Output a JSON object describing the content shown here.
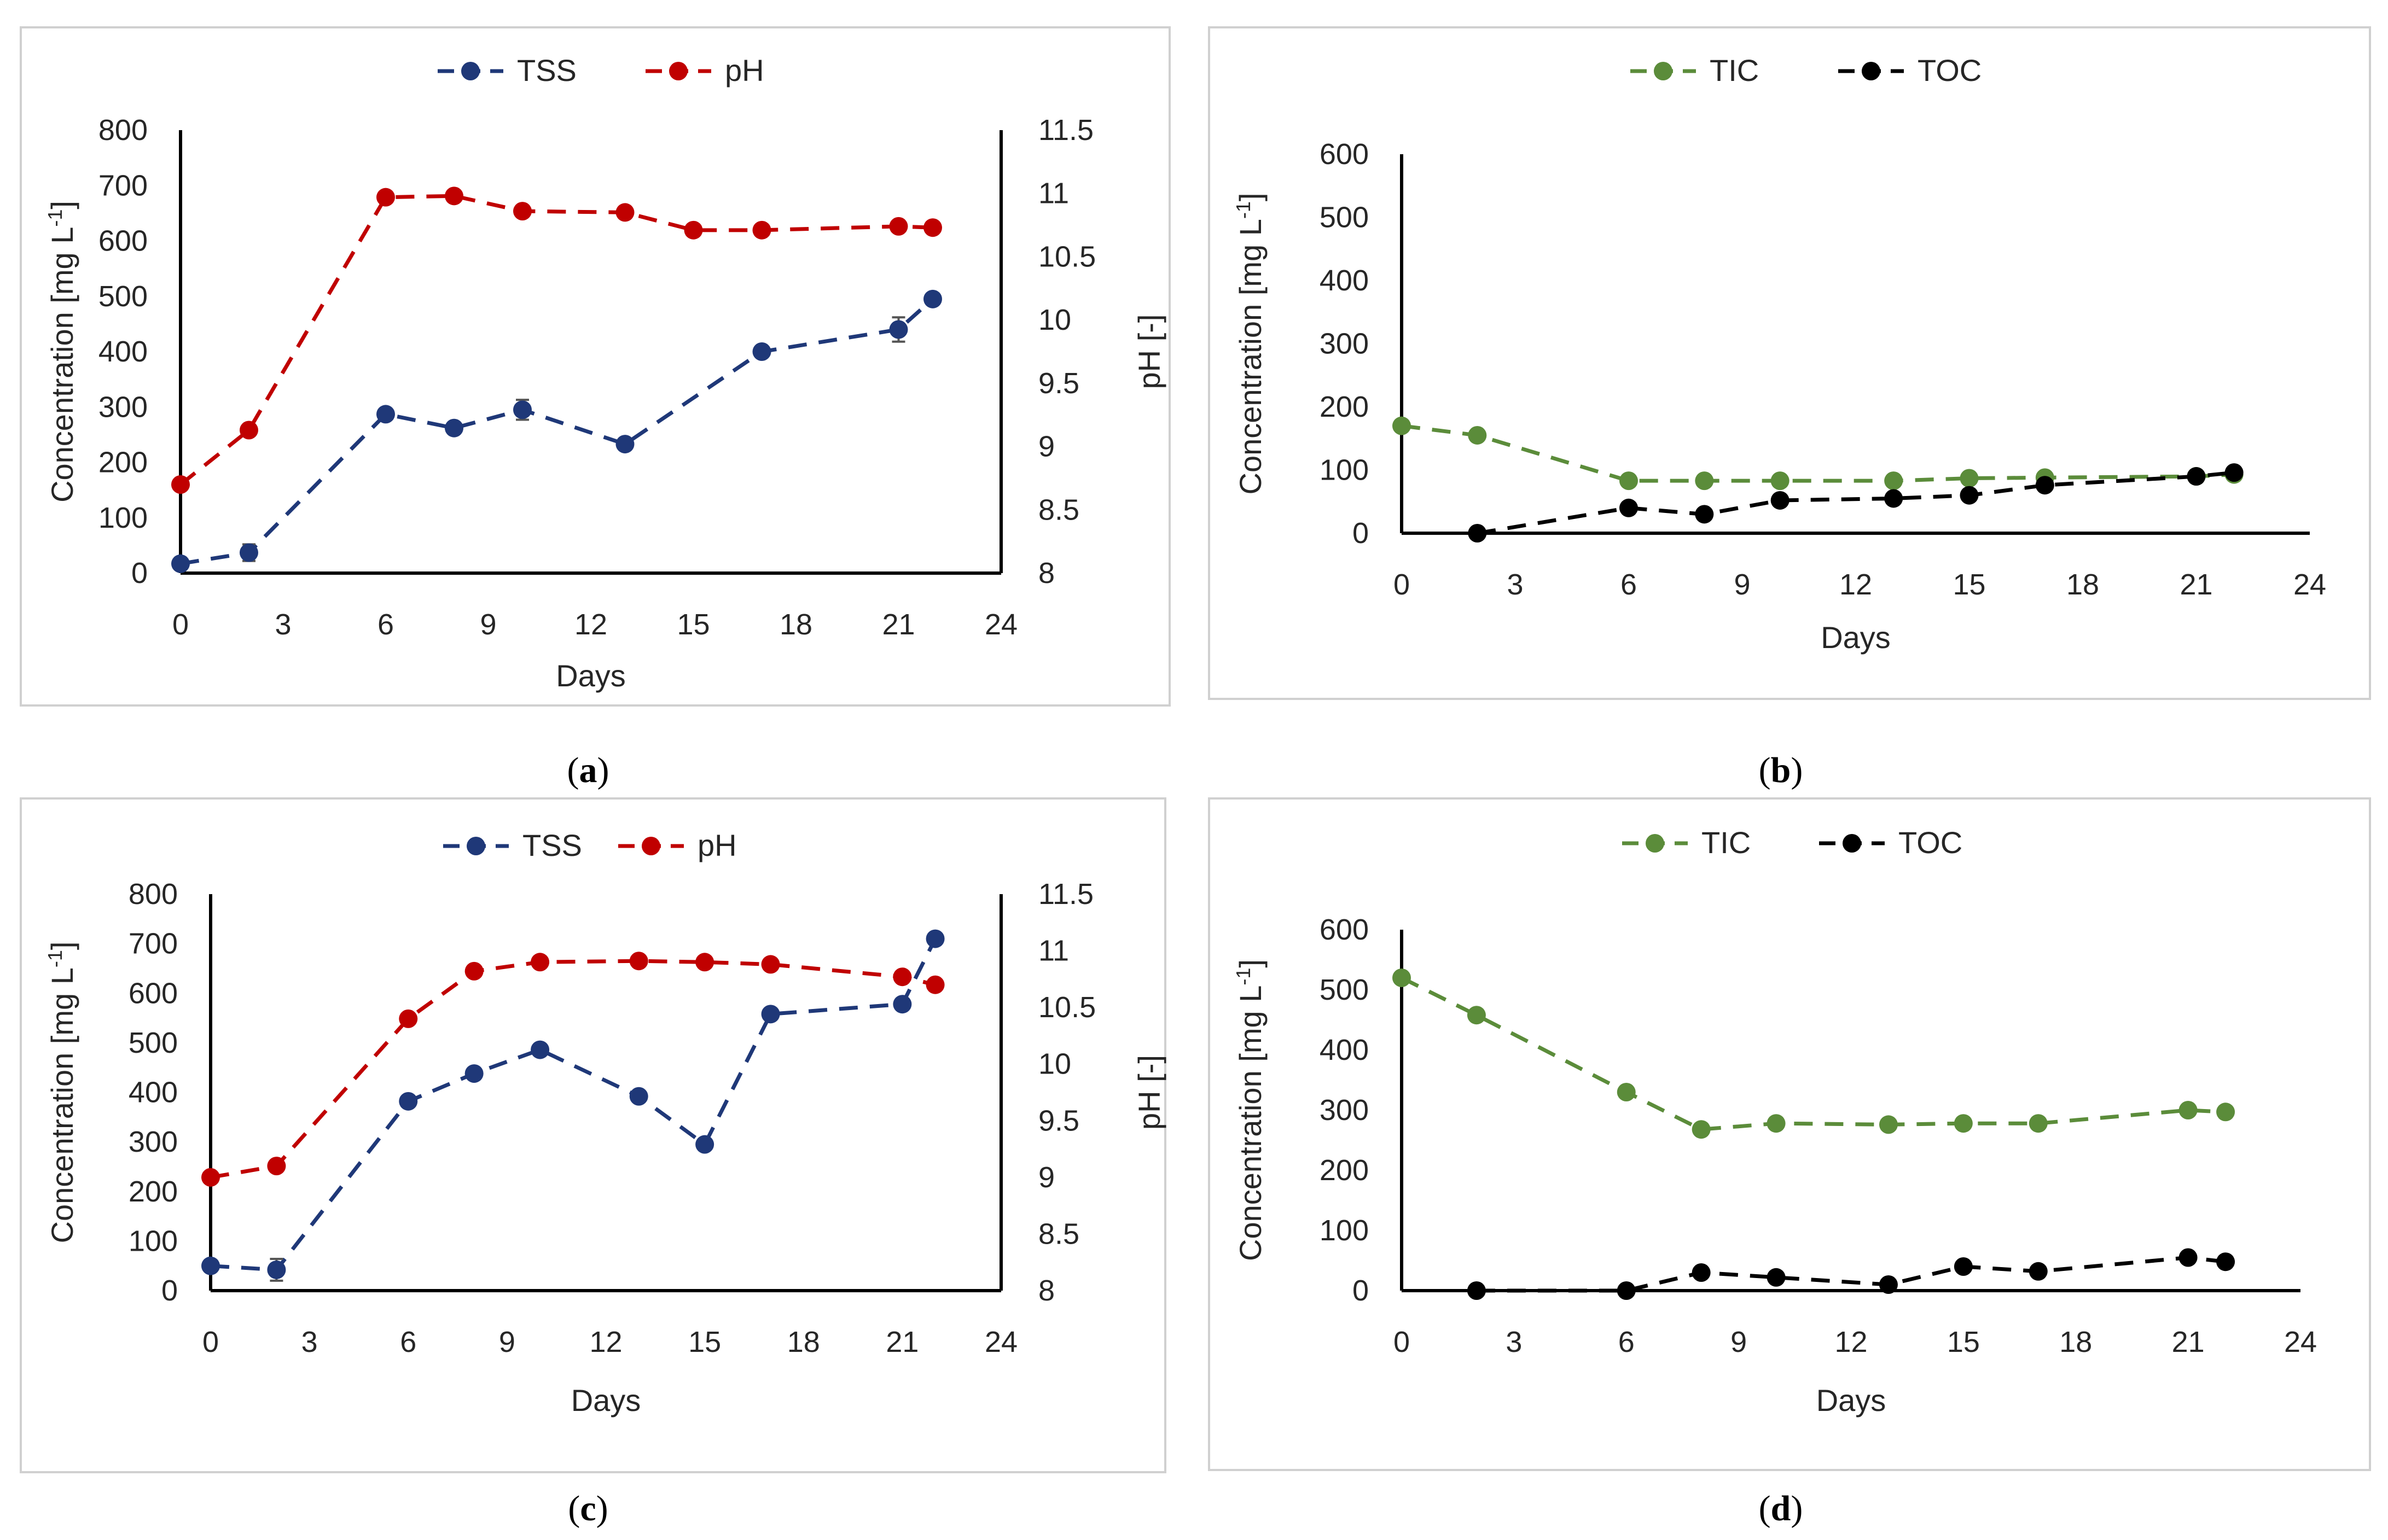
{
  "colors": {
    "tss": "#1f3878",
    "ph": "#c00000",
    "tic": "#5b8c3a",
    "toc": "#000000"
  },
  "chart_data": [
    {
      "type": "line",
      "panel": "a",
      "caption": "a",
      "xlabel": "Days",
      "ylabel": "Concentration  [mg L-1]",
      "y2label": "pH [-]",
      "xlim": [
        0,
        24
      ],
      "xticks": [
        "0",
        "3",
        "6",
        "9",
        "12",
        "15",
        "18",
        "21",
        "24"
      ],
      "ylim": [
        0,
        800
      ],
      "yticks": [
        "0",
        "100",
        "200",
        "300",
        "400",
        "500",
        "600",
        "700",
        "800"
      ],
      "y2lim": [
        8,
        11.5
      ],
      "y2ticks": [
        "8",
        "8.5",
        "9",
        "9.5",
        "10",
        "10.5",
        "11",
        "11.5"
      ],
      "series": [
        {
          "name": "TSS",
          "axis": "left",
          "color": "#1f3878",
          "x": [
            0,
            2,
            6,
            8,
            10,
            13,
            17,
            21,
            22
          ],
          "y": [
            17,
            37,
            287,
            262,
            295,
            233,
            400,
            440,
            495
          ],
          "err": [
            5,
            15,
            8,
            8,
            18,
            6,
            8,
            22,
            6
          ]
        },
        {
          "name": "pH",
          "axis": "right",
          "color": "#c00000",
          "x": [
            0,
            2,
            6,
            8,
            10,
            13,
            15,
            17,
            21,
            22
          ],
          "y": [
            8.7,
            9.13,
            10.97,
            10.98,
            10.86,
            10.85,
            10.71,
            10.71,
            10.74,
            10.73
          ]
        }
      ]
    },
    {
      "type": "line",
      "panel": "b",
      "caption": "b",
      "xlabel": "Days",
      "ylabel": "Concentration  [mg L-1]",
      "xlim": [
        0,
        24
      ],
      "xticks": [
        "0",
        "3",
        "6",
        "9",
        "12",
        "15",
        "18",
        "21",
        "24"
      ],
      "ylim": [
        0,
        600
      ],
      "yticks": [
        "0",
        "100",
        "200",
        "300",
        "400",
        "500",
        "600"
      ],
      "series": [
        {
          "name": "TIC",
          "axis": "left",
          "color": "#5b8c3a",
          "x": [
            0,
            2,
            6,
            8,
            10,
            13,
            15,
            17,
            21,
            22
          ],
          "y": [
            170,
            155,
            83,
            83,
            83,
            83,
            87,
            88,
            90,
            93
          ]
        },
        {
          "name": "TOC",
          "axis": "left",
          "color": "#000000",
          "x": [
            2,
            6,
            8,
            10,
            13,
            15,
            17,
            21,
            22
          ],
          "y": [
            0,
            40,
            30,
            52,
            55,
            60,
            76,
            90,
            96
          ]
        }
      ]
    },
    {
      "type": "line",
      "panel": "c",
      "caption": "c",
      "xlabel": "Days",
      "ylabel": "Concentration [mg L-1]",
      "y2label": "pH [-]",
      "xlim": [
        0,
        24
      ],
      "xticks": [
        "0",
        "3",
        "6",
        "9",
        "12",
        "15",
        "18",
        "21",
        "24"
      ],
      "ylim": [
        0,
        800
      ],
      "yticks": [
        "0",
        "100",
        "200",
        "300",
        "400",
        "500",
        "600",
        "700",
        "800"
      ],
      "y2lim": [
        8,
        11.5
      ],
      "y2ticks": [
        "8",
        "8.5",
        "9",
        "9.5",
        "10",
        "10.5",
        "11",
        "11.5"
      ],
      "series": [
        {
          "name": "TSS",
          "axis": "left",
          "color": "#1f3878",
          "x": [
            0,
            2,
            6,
            8,
            10,
            13,
            15,
            17,
            21,
            22
          ],
          "y": [
            50,
            42,
            382,
            438,
            486,
            392,
            295,
            558,
            578,
            710
          ],
          "err": [
            6,
            22,
            8,
            8,
            6,
            6,
            6,
            8,
            10,
            6
          ]
        },
        {
          "name": "pH",
          "axis": "right",
          "color": "#c00000",
          "x": [
            0,
            2,
            6,
            8,
            10,
            13,
            15,
            17,
            21,
            22
          ],
          "y": [
            9.0,
            9.1,
            10.4,
            10.82,
            10.9,
            10.91,
            10.9,
            10.88,
            10.77,
            10.7
          ]
        }
      ]
    },
    {
      "type": "line",
      "panel": "d",
      "caption": "d",
      "xlabel": "Days",
      "ylabel": "Concentration  [mg L-1]",
      "xlim": [
        0,
        24
      ],
      "xticks": [
        "0",
        "3",
        "6",
        "9",
        "12",
        "15",
        "18",
        "21",
        "24"
      ],
      "ylim": [
        0,
        600
      ],
      "yticks": [
        "0",
        "100",
        "200",
        "300",
        "400",
        "500",
        "600"
      ],
      "series": [
        {
          "name": "TIC",
          "axis": "left",
          "color": "#5b8c3a",
          "x": [
            0,
            2,
            6,
            8,
            10,
            13,
            15,
            17,
            21,
            22
          ],
          "y": [
            520,
            458,
            330,
            268,
            278,
            276,
            278,
            278,
            300,
            297
          ]
        },
        {
          "name": "TOC",
          "axis": "left",
          "color": "#000000",
          "x": [
            2,
            6,
            8,
            10,
            13,
            15,
            17,
            21,
            22
          ],
          "y": [
            0,
            0,
            30,
            22,
            10,
            40,
            32,
            55,
            48
          ]
        }
      ]
    }
  ]
}
